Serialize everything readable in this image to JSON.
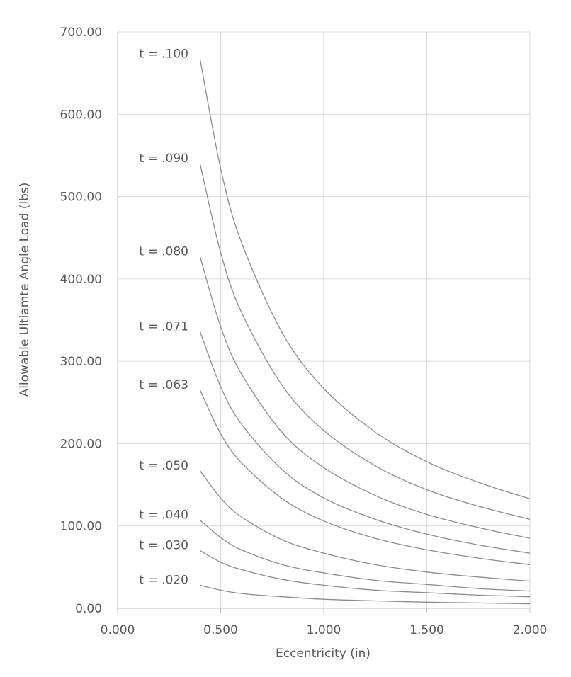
{
  "chart_data": {
    "type": "line",
    "title": "",
    "xlabel": "Eccentricity (in)",
    "ylabel": "Allowable Ultiamte Angle Load (lbs)",
    "xlim": [
      0,
      2
    ],
    "ylim": [
      0,
      700
    ],
    "x_ticks": [
      "0.000",
      "0.500",
      "1.000",
      "1.500",
      "2.000"
    ],
    "y_ticks": [
      "0.00",
      "100.00",
      "200.00",
      "300.00",
      "400.00",
      "500.00",
      "600.00",
      "700.00"
    ],
    "grid": true,
    "line_color": "#8c8c8c",
    "x": [
      0.4,
      0.5,
      0.6,
      0.8,
      1.0,
      1.25,
      1.5,
      1.75,
      2.0
    ],
    "series": [
      {
        "name": "t = .100",
        "values": [
          667,
          534,
          445,
          334,
          267,
          214,
          178,
          153,
          133
        ]
      },
      {
        "name": "t = .090",
        "values": [
          540,
          432,
          360,
          270,
          216,
          173,
          144,
          124,
          108
        ]
      },
      {
        "name": "t = .080",
        "values": [
          427,
          342,
          285,
          213,
          171,
          137,
          114,
          98,
          85
        ]
      },
      {
        "name": "t = .071",
        "values": [
          336,
          269,
          224,
          168,
          134,
          108,
          90,
          77,
          67
        ]
      },
      {
        "name": "t = .063",
        "values": [
          265,
          212,
          177,
          133,
          106,
          85,
          71,
          61,
          53
        ]
      },
      {
        "name": "t = .050",
        "values": [
          167,
          134,
          111,
          83,
          67,
          53,
          44,
          38,
          33
        ]
      },
      {
        "name": "t = .040",
        "values": [
          107,
          86,
          71,
          53,
          43,
          34,
          29,
          24,
          21
        ]
      },
      {
        "name": "t = .030",
        "values": [
          70,
          56,
          47,
          35,
          28,
          22,
          19,
          16,
          14
        ]
      },
      {
        "name": "t = .020",
        "values": [
          28,
          22,
          18,
          14,
          11,
          9,
          7.5,
          6.5,
          5.5
        ]
      }
    ]
  }
}
